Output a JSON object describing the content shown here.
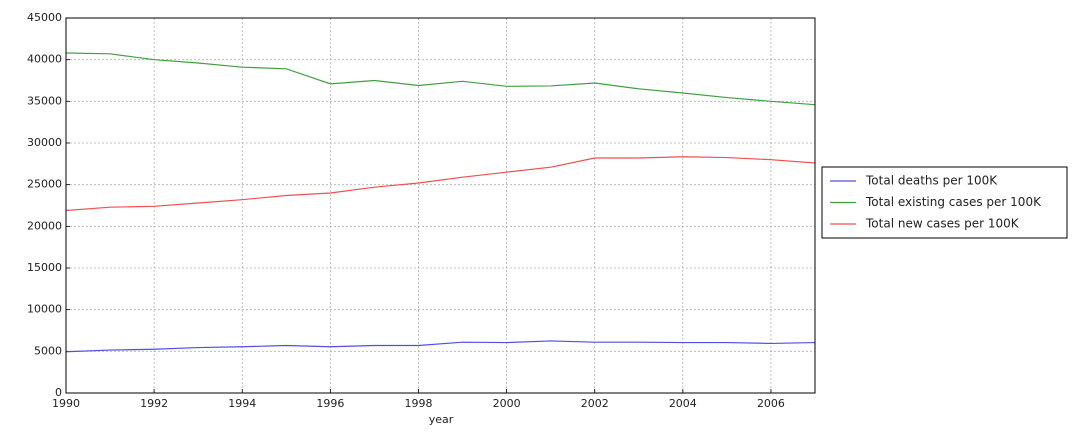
{
  "chart_data": {
    "type": "line",
    "x_label": "year",
    "x": [
      1990,
      1991,
      1992,
      1993,
      1994,
      1995,
      1996,
      1997,
      1998,
      1999,
      2000,
      2001,
      2002,
      2003,
      2004,
      2005,
      2006,
      2007
    ],
    "series": [
      {
        "name": "Total deaths per 100K",
        "color": "#5050e0",
        "values": [
          4950,
          5150,
          5250,
          5450,
          5550,
          5700,
          5550,
          5700,
          5700,
          6100,
          6050,
          6250,
          6100,
          6100,
          6050,
          6050,
          5950,
          6050
        ]
      },
      {
        "name": "Total existing cases per 100K",
        "color": "#40a040",
        "values": [
          40800,
          40700,
          40000,
          39600,
          39100,
          38900,
          37100,
          37500,
          36900,
          37400,
          36800,
          36850,
          37200,
          36500,
          36000,
          35450,
          35000,
          34600
        ]
      },
      {
        "name": "Total new cases per 100K",
        "color": "#f05050",
        "values": [
          21900,
          22300,
          22400,
          22800,
          23200,
          23700,
          24000,
          24700,
          25200,
          25900,
          26500,
          27100,
          28200,
          28200,
          28350,
          28250,
          28000,
          27600
        ]
      }
    ],
    "xlim": [
      1990,
      2007
    ],
    "xticks": [
      1990,
      1992,
      1994,
      1996,
      1998,
      2000,
      2002,
      2004,
      2006
    ],
    "ylim": [
      0,
      45000
    ],
    "yticks": [
      0,
      5000,
      10000,
      15000,
      20000,
      25000,
      30000,
      35000,
      40000,
      45000
    ],
    "grid": true,
    "legend": "outside-right"
  }
}
